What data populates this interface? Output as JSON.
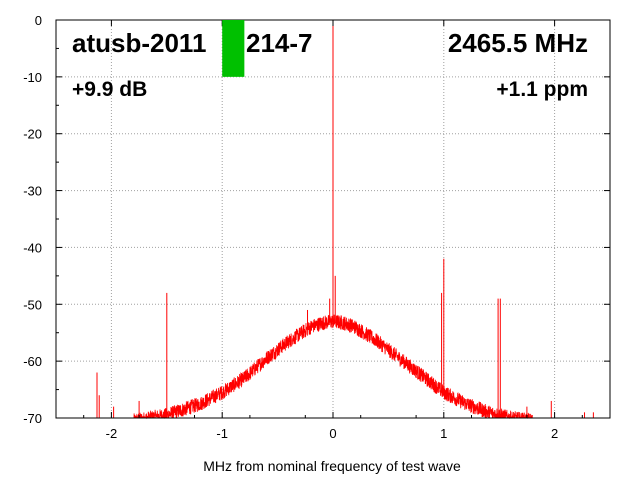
{
  "chart_data": {
    "type": "line",
    "xlabel": "MHz from nominal frequency of test wave",
    "ylabel": "",
    "xlim": [
      -2.5,
      2.5
    ],
    "ylim": [
      -70,
      0
    ],
    "xticks": [
      -2,
      -1,
      0,
      1,
      2
    ],
    "yticks": [
      0,
      -10,
      -20,
      -30,
      -40,
      -50,
      -60,
      -70
    ],
    "grid": true,
    "annotations": {
      "device": "atusb-2011",
      "device_suffix": "214-7",
      "frequency": "2465.5 MHz",
      "gain": "+9.9 dB",
      "offset": "+1.1 ppm"
    },
    "marker": {
      "x_from": -1.0,
      "x_to": -0.8,
      "y_top": 0,
      "y_bottom": -10
    },
    "noise_hump": {
      "x": [
        -1.8,
        -1.5,
        -1.2,
        -1.0,
        -0.8,
        -0.6,
        -0.4,
        -0.2,
        -0.1,
        0.0,
        0.1,
        0.2,
        0.4,
        0.6,
        0.8,
        1.0,
        1.2,
        1.4,
        1.6,
        1.8
      ],
      "y": [
        -70.5,
        -69.5,
        -67.5,
        -65.5,
        -63.0,
        -59.5,
        -56.5,
        -54.0,
        -53.3,
        -53.0,
        -53.3,
        -54.0,
        -56.5,
        -59.5,
        -62.5,
        -65.5,
        -67.5,
        -69.0,
        -70.0,
        -70.5
      ]
    },
    "spikes": [
      {
        "x": -2.13,
        "y": -62
      },
      {
        "x": -2.11,
        "y": -66
      },
      {
        "x": -1.98,
        "y": -68
      },
      {
        "x": -1.75,
        "y": -67
      },
      {
        "x": -1.5,
        "y": -48
      },
      {
        "x": -0.23,
        "y": -51
      },
      {
        "x": -0.03,
        "y": -49
      },
      {
        "x": 0.0,
        "y": 0
      },
      {
        "x": 0.02,
        "y": -45
      },
      {
        "x": 0.98,
        "y": -48
      },
      {
        "x": 1.0,
        "y": -42
      },
      {
        "x": 1.49,
        "y": -49
      },
      {
        "x": 1.51,
        "y": -49
      },
      {
        "x": 1.75,
        "y": -68
      },
      {
        "x": 1.97,
        "y": -67
      },
      {
        "x": 2.27,
        "y": -69
      },
      {
        "x": 2.35,
        "y": -69
      }
    ],
    "colors": {
      "trace": "#ff0000",
      "marker": "#00c000",
      "grid": "#a0a0a0",
      "axes": "#000000",
      "background": "#ffffff"
    }
  }
}
